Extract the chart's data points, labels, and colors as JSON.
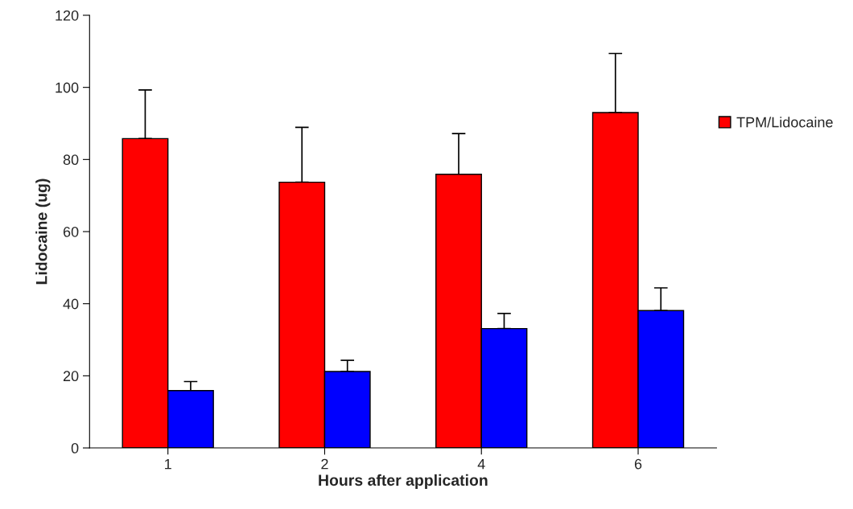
{
  "chart_data": {
    "type": "bar",
    "xlabel": "Hours after application",
    "ylabel": "Lidocaine (ug)",
    "categories": [
      "1",
      "2",
      "4",
      "6"
    ],
    "series": [
      {
        "name": "TPM/Lidocaine",
        "color": "#ff0000",
        "values": [
          85.8,
          73.7,
          75.9,
          93.0
        ],
        "errors": [
          [
            85.8,
            99.3
          ],
          [
            73.7,
            88.9
          ],
          [
            75.9,
            87.2
          ],
          [
            93.0,
            109.4
          ]
        ]
      },
      {
        "color": "#0000ff",
        "values": [
          15.9,
          21.2,
          33.1,
          38.1
        ],
        "errors": [
          [
            15.9,
            18.4
          ],
          [
            21.2,
            24.3
          ],
          [
            33.1,
            37.3
          ],
          [
            38.1,
            44.4
          ]
        ]
      }
    ],
    "ylim": [
      0,
      120
    ],
    "yticks": [
      0,
      20,
      40,
      60,
      80,
      100,
      120
    ],
    "grid": false,
    "legend": "right"
  }
}
